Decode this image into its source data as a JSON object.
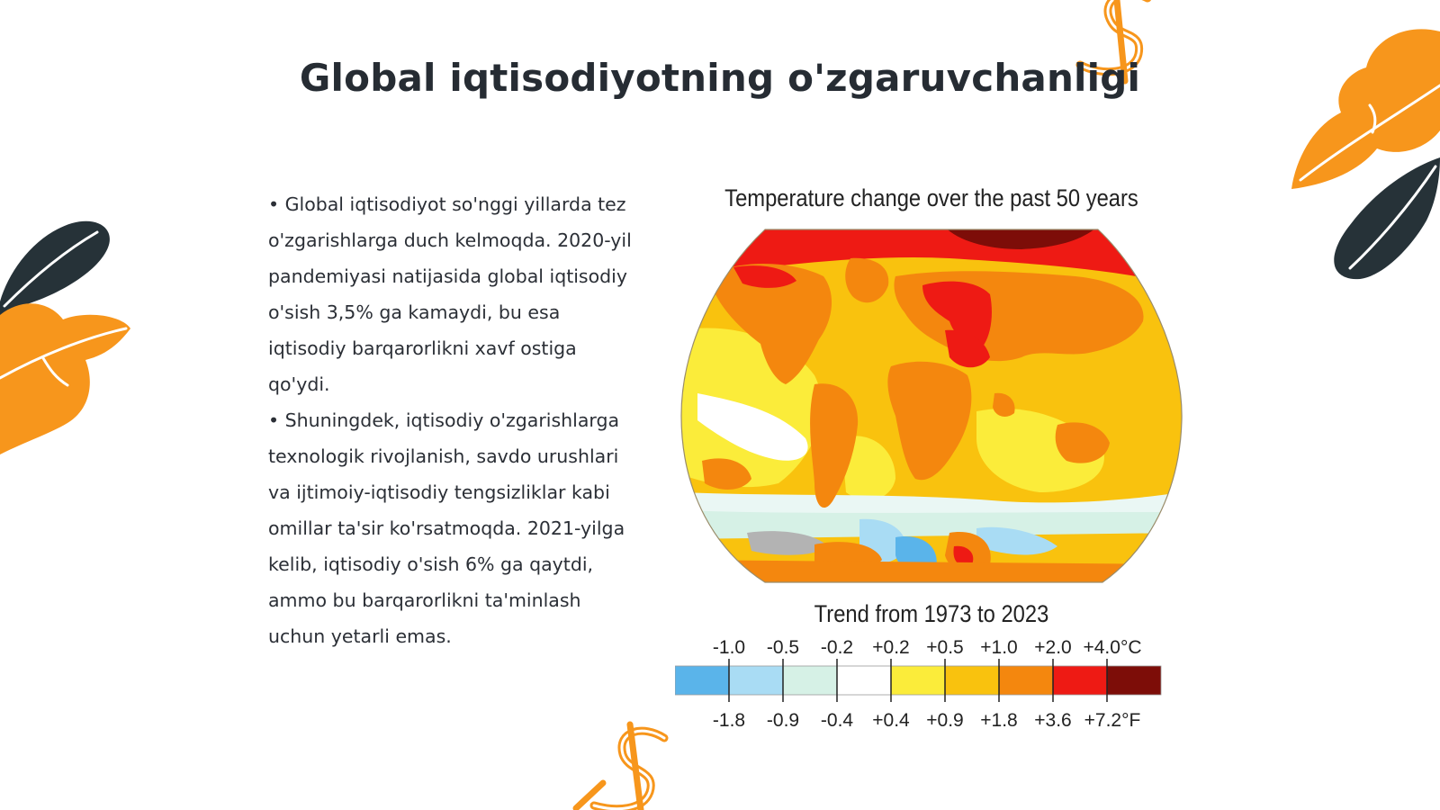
{
  "slide": {
    "title": "Global iqtisodiyotning o'zgaruvchanligi",
    "paragraphs": [
      "• Global iqtisodiyot so'nggi yillarda tez o'zgarishlarga duch kelmoqda. 2020-yil pandemiyasi natijasida global iqtisodiy o'sish 3,5% ga kamaydi, bu esa iqtisodiy barqarorlikni xavf ostiga qo'ydi.",
      "• Shuningdek, iqtisodiy o'zgarishlarga texnologik rivojlanish, savdo urushlari va ijtimoiy-iqtisodiy tengsizliklar kabi omillar ta'sir ko'rsatmoqda. 2021-yilga kelib, iqtisodiy o'sish 6% ga qaytdi, ammo bu barqarorlikni ta'minlash uchun yetarli emas."
    ]
  },
  "figure": {
    "title": "Temperature change over the past 50 years",
    "subtitle": "Trend from 1973 to 2023",
    "legend": {
      "celsius_labels": [
        "-1.0",
        "-0.5",
        "-0.2",
        "+0.2",
        "+0.5",
        "+1.0",
        "+2.0",
        "+4.0°C"
      ],
      "fahrenheit_labels": [
        "-1.8",
        "-0.9",
        "-0.4",
        "+0.4",
        "+0.9",
        "+1.8",
        "+3.6",
        "+7.2°F"
      ],
      "colors": [
        "#5ab4ea",
        "#a9dcf4",
        "#d6f1e6",
        "#ffffff",
        "#fbec3a",
        "#f9c20e",
        "#f4870e",
        "#ee1a14",
        "#7d0d08"
      ]
    }
  },
  "decor": {
    "leaf_orange": "#f7961c",
    "leaf_dark": "#263238",
    "dollar_orange": "#f7961c"
  }
}
